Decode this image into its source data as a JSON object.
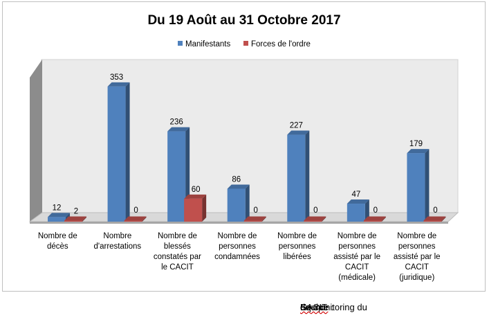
{
  "chart_data": {
    "type": "bar",
    "title": "Du 19 Août au 31 Octobre 2017",
    "categories": [
      [
        "Nombre de",
        "décès"
      ],
      [
        "Nombre",
        "d'arrestations"
      ],
      [
        "Nombre de",
        "blessés",
        "constatés par",
        "le CACIT"
      ],
      [
        "Nombre de",
        "personnes",
        "condamnées"
      ],
      [
        "Nombre de",
        "personnes",
        "libérées"
      ],
      [
        "Nombre de",
        "personnes",
        "assisté par le",
        "CACIT",
        "(médicale)"
      ],
      [
        "Nombre de",
        "personnes",
        "assisté par le",
        "CACIT",
        "(juridique)"
      ]
    ],
    "series": [
      {
        "name": "Manifestants",
        "color": "#4f81bd",
        "values": [
          12,
          353,
          236,
          86,
          227,
          47,
          179
        ]
      },
      {
        "name": "Forces de l'ordre",
        "color": "#c0504d",
        "values": [
          2,
          0,
          60,
          0,
          0,
          0,
          0
        ]
      }
    ],
    "ylim": [
      0,
      380
    ],
    "grid": false,
    "legend_position": "top-center",
    "style": "3d-clustered-column"
  },
  "source": {
    "prefix": "Source : ",
    "underlined": "Equipe",
    "middle": " de monitoring du ",
    "underlined2": "CACIT"
  }
}
